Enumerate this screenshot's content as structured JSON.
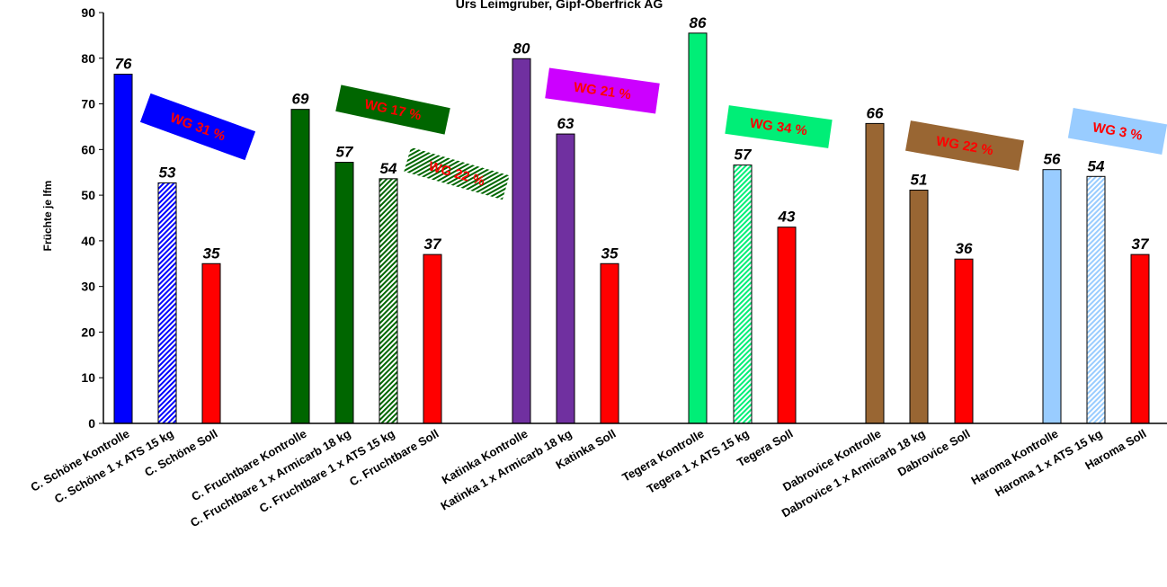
{
  "chart_data": {
    "type": "bar",
    "title": "Urs Leimgruber, Gipf-Oberfrick AG",
    "ylabel": "Früchte je lfm",
    "xlabel": "",
    "ylim": [
      0,
      90
    ],
    "yticks": [
      0,
      10,
      20,
      30,
      40,
      50,
      60,
      70,
      80,
      90
    ],
    "grid": false,
    "bars": [
      {
        "category": "C. Schöne  Kontrolle",
        "value": 76.5,
        "label": "76",
        "color": "#0000ff",
        "pattern": "solid"
      },
      {
        "category": "C. Schöne  1 x ATS 15 kg",
        "value": 52.7,
        "label": "53",
        "color": "#0000ff",
        "pattern": "hatch"
      },
      {
        "category": "C. Schöne  Soll",
        "value": 35,
        "label": "35",
        "color": "#ff0000",
        "pattern": "solid"
      },
      {
        "category": "C. Fruchtbare Kontrolle",
        "value": 68.8,
        "label": "69",
        "color": "#006600",
        "pattern": "solid"
      },
      {
        "category": "C. Fruchtbare 1 x Armicarb 18 kg",
        "value": 57.2,
        "label": "57",
        "color": "#006600",
        "pattern": "solid"
      },
      {
        "category": "C. Fruchtbare 1 x ATS 15 kg",
        "value": 53.6,
        "label": "54",
        "color": "#006600",
        "pattern": "hatch"
      },
      {
        "category": "C. Fruchtbare Soll",
        "value": 37,
        "label": "37",
        "color": "#ff0000",
        "pattern": "solid"
      },
      {
        "category": "Katinka Kontrolle",
        "value": 79.9,
        "label": "80",
        "color": "#7030a0",
        "pattern": "solid"
      },
      {
        "category": "Katinka 1 x Armicarb 18 kg",
        "value": 63.4,
        "label": "63",
        "color": "#7030a0",
        "pattern": "solid"
      },
      {
        "category": "Katinka Soll",
        "value": 35,
        "label": "35",
        "color": "#ff0000",
        "pattern": "solid"
      },
      {
        "category": "Tegera Kontrolle",
        "value": 85.5,
        "label": "86",
        "color": "#00ee77",
        "pattern": "solid"
      },
      {
        "category": "Tegera 1 x ATS 15 kg",
        "value": 56.6,
        "label": "57",
        "color": "#00ee77",
        "pattern": "hatch"
      },
      {
        "category": "Tegera Soll",
        "value": 43,
        "label": "43",
        "color": "#ff0000",
        "pattern": "solid"
      },
      {
        "category": "Dabrovice Kontrolle",
        "value": 65.7,
        "label": "66",
        "color": "#996633",
        "pattern": "solid"
      },
      {
        "category": "Dabrovice 1 x Armicarb 18 kg",
        "value": 51.1,
        "label": "51",
        "color": "#996633",
        "pattern": "solid"
      },
      {
        "category": "Dabrovice Soll",
        "value": 36,
        "label": "36",
        "color": "#ff0000",
        "pattern": "solid"
      },
      {
        "category": "Haroma Kontrolle",
        "value": 55.6,
        "label": "56",
        "color": "#99ccff",
        "pattern": "solid"
      },
      {
        "category": "Haroma 1 x ATS 15 kg",
        "value": 54.1,
        "label": "54",
        "color": "#99ccff",
        "pattern": "hatch"
      },
      {
        "category": "Haroma Soll",
        "value": 37,
        "label": "37",
        "color": "#ff0000",
        "pattern": "solid"
      }
    ],
    "annotations": [
      {
        "text": "WG 31 %",
        "fill": "#0000ff"
      },
      {
        "text": "WG 17 %",
        "fill": "#006600"
      },
      {
        "text": "WG 22 %",
        "fill": "#006600"
      },
      {
        "text": "WG 21 %",
        "fill": "#cc00ff"
      },
      {
        "text": "WG 34 %",
        "fill": "#00ee77"
      },
      {
        "text": "WG 22 %",
        "fill": "#996633"
      },
      {
        "text": "WG 3 %",
        "fill": "#99ccff"
      }
    ]
  }
}
